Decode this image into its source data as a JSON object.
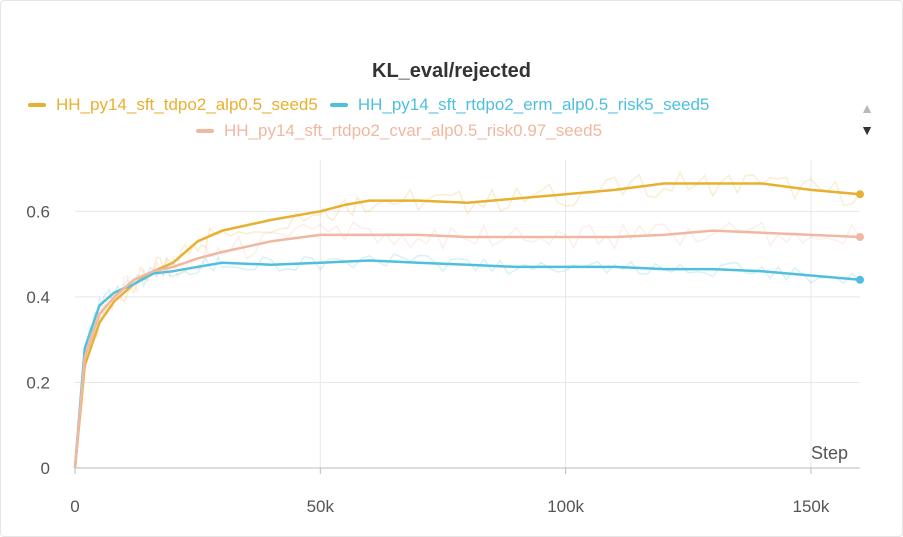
{
  "chart_data": {
    "type": "line",
    "title": "KL_eval/rejected",
    "xlabel": "Step",
    "ylabel": "",
    "xlim": [
      0,
      160000
    ],
    "ylim": [
      0,
      0.72
    ],
    "x_ticks": [
      0,
      50000,
      100000,
      150000
    ],
    "x_tick_labels": [
      "0",
      "50k",
      "100k",
      "150k"
    ],
    "y_ticks": [
      0,
      0.2,
      0.4,
      0.6
    ],
    "y_tick_labels": [
      "0",
      "0.2",
      "0.4",
      "0.6"
    ],
    "grid": true,
    "legend_position": "top",
    "series": [
      {
        "name": "HH_py14_sft_tdpo2_alp0.5_seed5",
        "color": "#e8b030",
        "x": [
          0,
          2000,
          5000,
          8000,
          12000,
          16000,
          20000,
          25000,
          30000,
          40000,
          50000,
          55000,
          60000,
          70000,
          80000,
          90000,
          100000,
          110000,
          120000,
          130000,
          140000,
          150000,
          160000
        ],
        "values": [
          0,
          0.24,
          0.34,
          0.39,
          0.43,
          0.46,
          0.48,
          0.53,
          0.555,
          0.58,
          0.6,
          0.615,
          0.625,
          0.625,
          0.62,
          0.63,
          0.64,
          0.65,
          0.665,
          0.665,
          0.665,
          0.65,
          0.64
        ]
      },
      {
        "name": "HH_py14_sft_rtdpo2_erm_alp0.5_risk5_seed5",
        "color": "#4ec0dd",
        "x": [
          0,
          2000,
          5000,
          8000,
          12000,
          16000,
          20000,
          25000,
          30000,
          40000,
          50000,
          60000,
          70000,
          80000,
          90000,
          100000,
          110000,
          120000,
          130000,
          140000,
          150000,
          160000
        ],
        "values": [
          0,
          0.28,
          0.38,
          0.41,
          0.43,
          0.455,
          0.46,
          0.47,
          0.48,
          0.475,
          0.48,
          0.485,
          0.48,
          0.475,
          0.47,
          0.47,
          0.47,
          0.465,
          0.465,
          0.46,
          0.45,
          0.44
        ]
      },
      {
        "name": "HH_py14_sft_rtdpo2_cvar_alp0.5_risk0.97_seed5",
        "color": "#f0b8a0",
        "x": [
          0,
          2000,
          5000,
          8000,
          12000,
          16000,
          20000,
          25000,
          30000,
          40000,
          50000,
          60000,
          70000,
          80000,
          90000,
          100000,
          110000,
          120000,
          130000,
          140000,
          150000,
          160000
        ],
        "values": [
          0,
          0.26,
          0.36,
          0.4,
          0.44,
          0.46,
          0.47,
          0.49,
          0.505,
          0.53,
          0.545,
          0.545,
          0.545,
          0.54,
          0.54,
          0.54,
          0.54,
          0.545,
          0.555,
          0.55,
          0.545,
          0.54
        ]
      }
    ]
  },
  "scroll_controls": {
    "up_icon": "▲",
    "down_icon": "▼"
  }
}
